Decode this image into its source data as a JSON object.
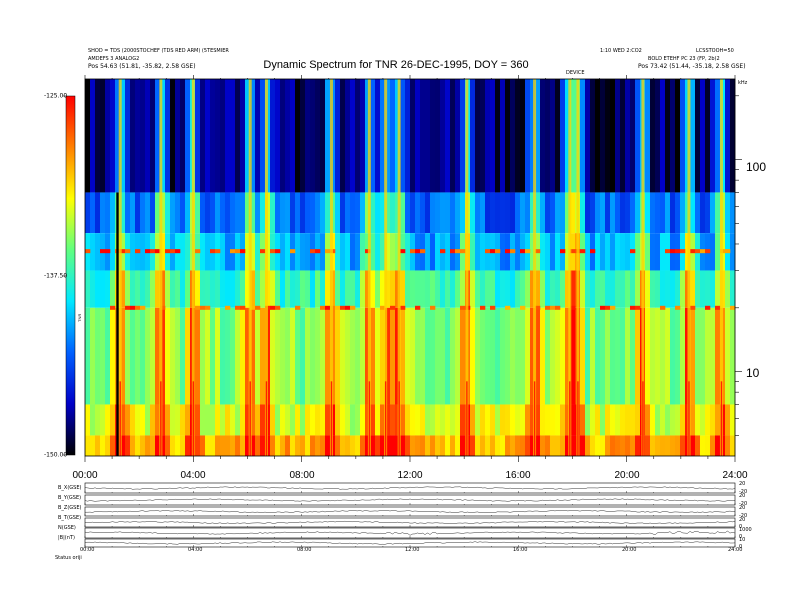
{
  "header": {
    "title": "Dynamic Spectrum for TNR 26-DEC-1995, DOY = 360",
    "left_lines": [
      "SHOD = TDS (2000STOCHEF (TDS RED ARM) (5TESMIER",
      "AMDEFS 3 ANALOG2"
    ],
    "left_pos": "Pos  54.63 (51.81, -35.82, 2.58 GSE)",
    "right_lines": [
      "1:10 WED 2:CO2",
      "BOLD ETEHF PC 23 (FP, 2b)2"
    ],
    "right_pos": "Pos  73.42 (51.44, -35.18, 2.58 GSE)",
    "right_corner": "LCSSTOOH=50",
    "marker_label": "DEVICE"
  },
  "colorbar": {
    "label": "TNR",
    "ticks": [
      "-125.00",
      "-137.50",
      "-150.00"
    ]
  },
  "axis": {
    "right_unit": "kHz",
    "bottom_left": "Status  oriji"
  },
  "panel_labels": [
    "B_X(GSE)",
    "B_Y(GSE)",
    "B_Z(GSE)",
    "B_T(GSE)",
    "N(GSE)",
    "|B|(nT)"
  ],
  "panel_right_ticks": [
    [
      "20",
      "-20"
    ],
    [
      "20",
      "-20"
    ],
    [
      "20",
      "-20"
    ],
    [
      "20",
      "0"
    ],
    [
      "1000",
      "0"
    ],
    [
      "10",
      "0"
    ]
  ],
  "chart_data": {
    "type": "heatmap",
    "title": "Dynamic Spectrum for TNR 26-DEC-1995, DOY = 360",
    "x_label": "",
    "x_ticks": [
      "00:00",
      "04:00",
      "08:00",
      "12:00",
      "16:00",
      "20:00",
      "24:00"
    ],
    "x_range_hours": [
      0,
      24
    ],
    "y_scale": "log",
    "y_unit": "kHz",
    "y_range_khz": [
      4,
      240
    ],
    "y_ticks": [
      10,
      100
    ],
    "z_range": [
      -150.0,
      -125.0
    ],
    "z_ticks": [
      -125.0,
      -137.5,
      -150.0
    ],
    "colormap": [
      "#000000",
      "#0000c8",
      "#0060ff",
      "#00e8ff",
      "#60ff80",
      "#ffff00",
      "#ff8000",
      "#ff0000"
    ],
    "bands": [
      {
        "f_low_khz": 70,
        "f_high_khz": 240,
        "level": -148.0
      },
      {
        "f_low_khz": 45,
        "f_high_khz": 70,
        "level": -143.0
      },
      {
        "f_low_khz": 30,
        "f_high_khz": 45,
        "level": -141.0
      },
      {
        "f_low_khz": 20,
        "f_high_khz": 30,
        "level": -137.5
      },
      {
        "f_low_khz": 7,
        "f_high_khz": 20,
        "level": -135.0
      },
      {
        "f_low_khz": 5,
        "f_high_khz": 7,
        "level": -133.0
      },
      {
        "f_low_khz": 4,
        "f_high_khz": 5,
        "level": -130.0
      }
    ],
    "emission_lines": [
      {
        "f_khz": 37,
        "level": -127.0
      },
      {
        "f_khz": 20,
        "level": -128.0
      }
    ],
    "bursts_hours": [
      1.3,
      2.8,
      4.0,
      6.1,
      6.7,
      9.1,
      10.5,
      11.1,
      11.6,
      14.1,
      16.6,
      17.9,
      18.2,
      20.6,
      22.3,
      23.5
    ],
    "data_gap_hours": [
      1.2
    ]
  }
}
